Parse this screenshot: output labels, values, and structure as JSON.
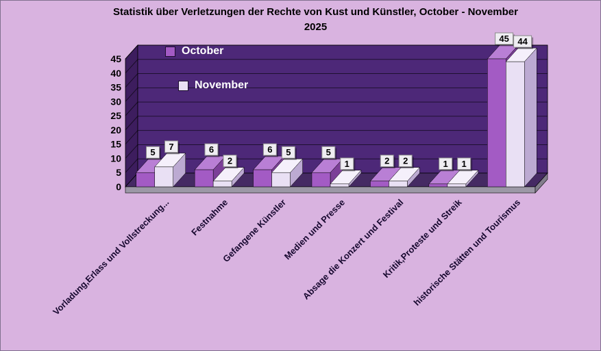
{
  "title": {
    "line1": "Statistik über Verletzungen der Rechte von Kust und Künstler, October - November",
    "line2": "2025"
  },
  "chart_data": {
    "type": "bar",
    "style": "3d-clustered-column",
    "title": "Statistik über Verletzungen der Rechte von Kust und Künstler, October - November 2025",
    "xlabel": "",
    "ylabel": "",
    "ylim": [
      0,
      45
    ],
    "yticks": [
      0,
      5,
      10,
      15,
      20,
      25,
      30,
      35,
      40,
      45
    ],
    "grid": true,
    "legend_position": "top-left-inside",
    "categories": [
      "Vorladung,Erlass und Vollstreckung...",
      "Festnahme",
      "Gefangene Künstler",
      "Medien und Presse",
      "Absage die Konzert und Festival",
      "Kritik,Proteste und Streik",
      "historische Stätten und Tourismus"
    ],
    "series": [
      {
        "name": "October",
        "values": [
          5,
          6,
          6,
          5,
          2,
          1,
          45
        ],
        "color": "#a35bc4",
        "color_top": "#b97fd5",
        "color_side": "#7c3f98"
      },
      {
        "name": "November",
        "values": [
          7,
          2,
          5,
          1,
          2,
          1,
          44
        ],
        "color": "#e9e0f4",
        "color_top": "#f5f0fb",
        "color_side": "#bcaad2"
      }
    ],
    "colors": {
      "background": "#d9b3e0",
      "wall": "#4d2878",
      "wall_side": "#3d1d5e",
      "floor": "#452a63",
      "floor_front": "#9c98a6",
      "floor_front_side": "#827e8c",
      "grid": "#000000",
      "label_box": "#efedf2",
      "label_box_border": "#8a8a8a",
      "tick_text": "#000000"
    }
  }
}
